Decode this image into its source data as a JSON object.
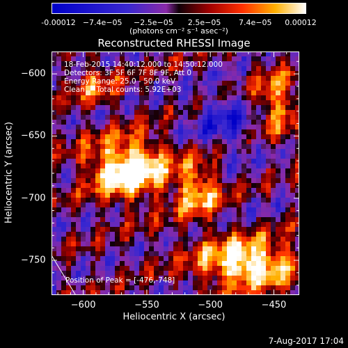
{
  "chart_data": {
    "type": "heatmap",
    "title": "Reconstructed RHESSI Image",
    "xlabel": "Heliocentric X (arcsec)",
    "ylabel": "Heliocentric Y (arcsec)",
    "xlim": [
      -625,
      -430
    ],
    "ylim": [
      -778,
      -582
    ],
    "x_ticks": [
      -600,
      -550,
      -500,
      -450
    ],
    "y_ticks": [
      -600,
      -650,
      -700,
      -750
    ],
    "colorbar": {
      "units_text": "(photons cm⁻² s⁻¹ asec⁻²)",
      "ticks": [
        "-0.00012",
        "−7.4e−05",
        "−2.5e−05",
        "2.5e−05",
        "7.4e−05",
        "0.00012"
      ],
      "range": [
        -0.00012,
        0.00012
      ]
    },
    "annotations": {
      "time": "18-Feb-2015 14:40:12.000 to 14:50:12.000",
      "detectors": "Detectors: 3F 5F 6F 7F 8F 9F, Att 0",
      "energy": "Energy Range: 25.0 - 50.0 keV",
      "clean": "Clean     Total counts: 5.92E+03",
      "peak": "Position of Peak = [-476,-748]"
    },
    "peak_position": [
      -476,
      -748
    ],
    "limb_line": [
      [
        -625,
        -746
      ],
      [
        -606,
        -778
      ]
    ]
  },
  "footer": {
    "timestamp": "7-Aug-2017 17:04"
  }
}
